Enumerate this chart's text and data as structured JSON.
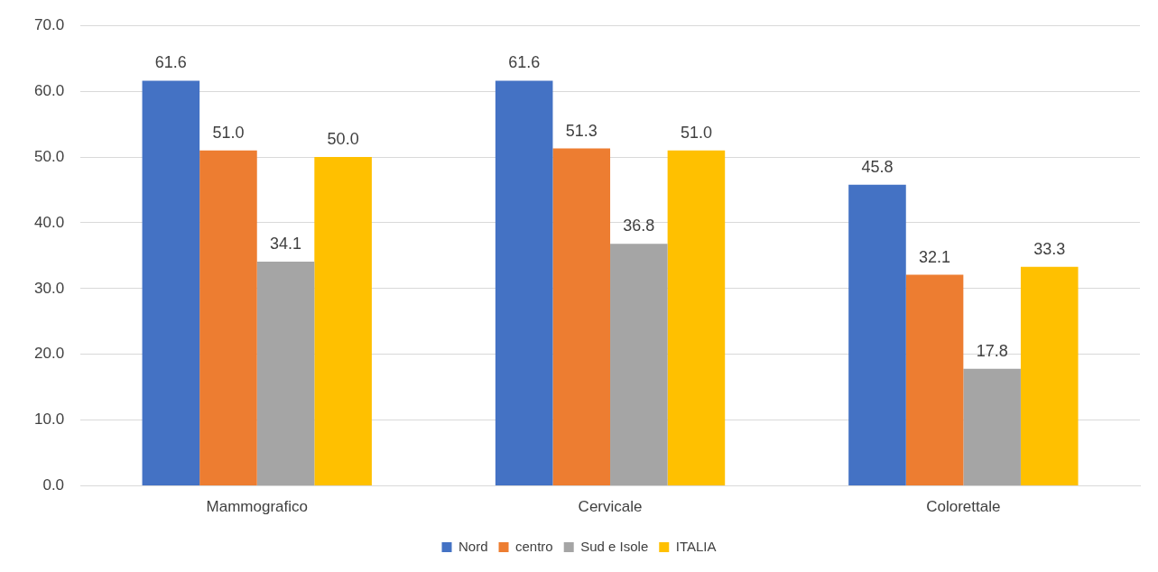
{
  "chart_data": {
    "type": "bar",
    "categories": [
      "Mammografico",
      "Cervicale",
      "Colorettale"
    ],
    "series": [
      {
        "name": "Nord",
        "color": "#4472c4",
        "values": [
          61.6,
          61.6,
          45.8
        ],
        "value_labels": [
          "61.6",
          "61.6",
          "45.8"
        ]
      },
      {
        "name": "centro",
        "color": "#ed7d31",
        "values": [
          51.0,
          51.3,
          32.1
        ],
        "value_labels": [
          "51.0",
          "51.3",
          "32.1"
        ]
      },
      {
        "name": "Sud e Isole",
        "color": "#a5a5a5",
        "values": [
          34.1,
          36.8,
          17.8
        ],
        "value_labels": [
          "34.1",
          "36.8",
          "17.8"
        ]
      },
      {
        "name": "ITALIA",
        "color": "#ffc000",
        "values": [
          50.0,
          51.0,
          33.3
        ],
        "value_labels": [
          "50.0",
          "51.0",
          "33.3"
        ]
      }
    ],
    "ylim": [
      0,
      70
    ],
    "yticks": [
      {
        "value": 0,
        "label": "0.0"
      },
      {
        "value": 10,
        "label": "10.0"
      },
      {
        "value": 20,
        "label": "20.0"
      },
      {
        "value": 30,
        "label": "30.0"
      },
      {
        "value": 40,
        "label": "40.0"
      },
      {
        "value": 50,
        "label": "50.0"
      },
      {
        "value": 60,
        "label": "60.0"
      },
      {
        "value": 70,
        "label": "70.0"
      }
    ],
    "grid": "y",
    "legend": "bottom"
  }
}
